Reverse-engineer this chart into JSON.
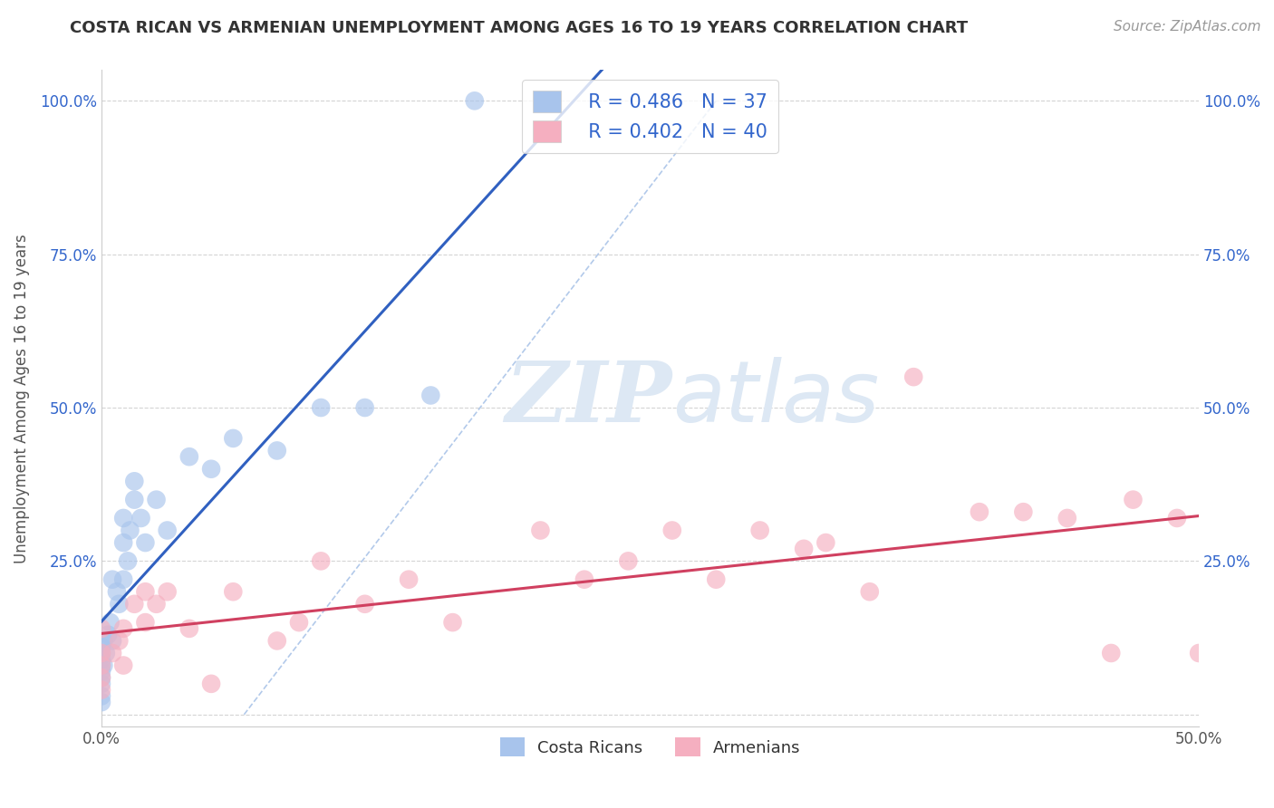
{
  "title": "COSTA RICAN VS ARMENIAN UNEMPLOYMENT AMONG AGES 16 TO 19 YEARS CORRELATION CHART",
  "source": "Source: ZipAtlas.com",
  "ylabel": "Unemployment Among Ages 16 to 19 years",
  "xlim": [
    0.0,
    0.5
  ],
  "ylim": [
    -0.02,
    1.05
  ],
  "x_ticks": [
    0.0,
    0.5
  ],
  "x_tick_labels": [
    "0.0%",
    "50.0%"
  ],
  "y_ticks": [
    0.0,
    0.25,
    0.5,
    0.75,
    1.0
  ],
  "y_tick_labels": [
    "",
    "25.0%",
    "50.0%",
    "75.0%",
    "100.0%"
  ],
  "legend_r_costa": "R = 0.486",
  "legend_n_costa": "N = 37",
  "legend_r_armenian": "R = 0.402",
  "legend_n_armenian": "N = 40",
  "legend_label_costa": "Costa Ricans",
  "legend_label_armenian": "Armenians",
  "costa_color": "#a8c4ec",
  "armenian_color": "#f5afc0",
  "costa_line_color": "#3060c0",
  "armenian_line_color": "#d04060",
  "diag_line_color": "#aac4e8",
  "watermark_zip": "ZIP",
  "watermark_atlas": "atlas",
  "costa_x": [
    0.0,
    0.0,
    0.0,
    0.0,
    0.0,
    0.0,
    0.0,
    0.0,
    0.0,
    0.001,
    0.001,
    0.002,
    0.003,
    0.004,
    0.005,
    0.005,
    0.007,
    0.008,
    0.01,
    0.01,
    0.01,
    0.012,
    0.013,
    0.015,
    0.015,
    0.018,
    0.02,
    0.025,
    0.03,
    0.04,
    0.05,
    0.06,
    0.08,
    0.1,
    0.12,
    0.15,
    0.17
  ],
  "costa_y": [
    0.02,
    0.03,
    0.05,
    0.06,
    0.07,
    0.08,
    0.09,
    0.1,
    0.11,
    0.08,
    0.12,
    0.1,
    0.13,
    0.15,
    0.12,
    0.22,
    0.2,
    0.18,
    0.22,
    0.28,
    0.32,
    0.25,
    0.3,
    0.35,
    0.38,
    0.32,
    0.28,
    0.35,
    0.3,
    0.42,
    0.4,
    0.45,
    0.43,
    0.5,
    0.5,
    0.52,
    1.0
  ],
  "armenian_x": [
    0.0,
    0.0,
    0.0,
    0.0,
    0.0,
    0.005,
    0.008,
    0.01,
    0.01,
    0.015,
    0.02,
    0.02,
    0.025,
    0.03,
    0.04,
    0.05,
    0.06,
    0.08,
    0.09,
    0.1,
    0.12,
    0.14,
    0.16,
    0.2,
    0.22,
    0.24,
    0.26,
    0.28,
    0.3,
    0.32,
    0.33,
    0.35,
    0.37,
    0.4,
    0.42,
    0.44,
    0.46,
    0.47,
    0.49,
    0.5
  ],
  "armenian_y": [
    0.04,
    0.06,
    0.08,
    0.1,
    0.14,
    0.1,
    0.12,
    0.08,
    0.14,
    0.18,
    0.15,
    0.2,
    0.18,
    0.2,
    0.14,
    0.05,
    0.2,
    0.12,
    0.15,
    0.25,
    0.18,
    0.22,
    0.15,
    0.3,
    0.22,
    0.25,
    0.3,
    0.22,
    0.3,
    0.27,
    0.28,
    0.2,
    0.55,
    0.33,
    0.33,
    0.32,
    0.1,
    0.35,
    0.32,
    0.1
  ],
  "title_fontsize": 13,
  "source_fontsize": 11,
  "tick_fontsize": 12,
  "ylabel_fontsize": 12
}
